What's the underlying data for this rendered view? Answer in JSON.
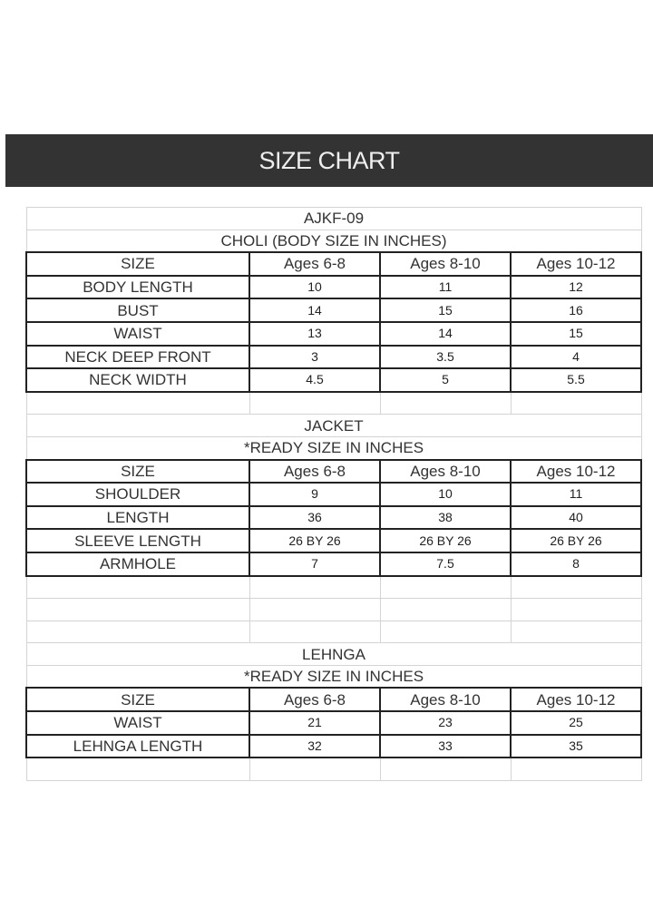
{
  "banner": {
    "title": "SIZE CHART"
  },
  "sections": [
    {
      "titles": [
        "AJKF-09",
        "CHOLI (BODY SIZE IN INCHES)"
      ],
      "header": [
        "SIZE",
        "Ages 6-8",
        "Ages 8-10",
        "Ages 10-12"
      ],
      "rows": [
        [
          "BODY LENGTH",
          "10",
          "11",
          "12"
        ],
        [
          "BUST",
          "14",
          "15",
          "16"
        ],
        [
          "WAIST",
          "13",
          "14",
          "15"
        ],
        [
          "NECK DEEP FRONT",
          "3",
          "3.5",
          "4"
        ],
        [
          "NECK WIDTH",
          "4.5",
          "5",
          "5.5"
        ]
      ],
      "empty_rows": 1
    },
    {
      "titles": [
        "JACKET",
        "*READY SIZE IN INCHES"
      ],
      "header": [
        "SIZE",
        "Ages 6-8",
        "Ages 8-10",
        "Ages 10-12"
      ],
      "rows": [
        [
          "SHOULDER",
          "9",
          "10",
          "11"
        ],
        [
          "LENGTH",
          "36",
          "38",
          "40"
        ],
        [
          "SLEEVE LENGTH",
          "26 BY 26",
          "26 BY 26",
          "26 BY 26"
        ],
        [
          "ARMHOLE",
          "7",
          "7.5",
          "8"
        ]
      ],
      "empty_rows": 3
    },
    {
      "titles": [
        "LEHNGA",
        "*READY SIZE IN INCHES"
      ],
      "header": [
        "SIZE",
        "Ages 6-8",
        "Ages 8-10",
        "Ages 10-12"
      ],
      "rows": [
        [
          "WAIST",
          "21",
          "23",
          "25"
        ],
        [
          "LEHNGA LENGTH",
          "32",
          "33",
          "35"
        ]
      ],
      "empty_rows": 1
    }
  ]
}
